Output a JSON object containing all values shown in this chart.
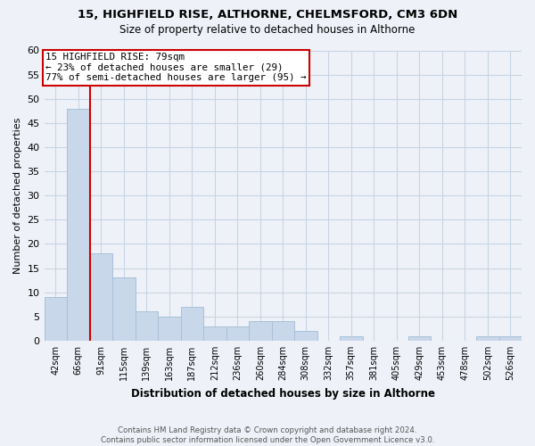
{
  "title_line1": "15, HIGHFIELD RISE, ALTHORNE, CHELMSFORD, CM3 6DN",
  "title_line2": "Size of property relative to detached houses in Althorne",
  "xlabel": "Distribution of detached houses by size in Althorne",
  "ylabel": "Number of detached properties",
  "footnote": "Contains HM Land Registry data © Crown copyright and database right 2024.\nContains public sector information licensed under the Open Government Licence v3.0.",
  "categories": [
    "42sqm",
    "66sqm",
    "91sqm",
    "115sqm",
    "139sqm",
    "163sqm",
    "187sqm",
    "212sqm",
    "236sqm",
    "260sqm",
    "284sqm",
    "308sqm",
    "332sqm",
    "357sqm",
    "381sqm",
    "405sqm",
    "429sqm",
    "453sqm",
    "478sqm",
    "502sqm",
    "526sqm"
  ],
  "values": [
    9,
    48,
    18,
    13,
    6,
    5,
    7,
    3,
    3,
    4,
    4,
    2,
    0,
    1,
    0,
    0,
    1,
    0,
    0,
    1,
    1
  ],
  "bar_color": "#c8d8ea",
  "bar_edgecolor": "#a8c0d8",
  "bar_linewidth": 0.7,
  "grid_color": "#c8d4e4",
  "background_color": "#eef2f8",
  "ylim": [
    0,
    60
  ],
  "yticks": [
    0,
    5,
    10,
    15,
    20,
    25,
    30,
    35,
    40,
    45,
    50,
    55,
    60
  ],
  "annotation_text": "15 HIGHFIELD RISE: 79sqm\n← 23% of detached houses are smaller (29)\n77% of semi-detached houses are larger (95) →",
  "annotation_box_color": "white",
  "annotation_border_color": "#cc0000",
  "vline_color": "#cc0000",
  "vline_x": 1.5
}
